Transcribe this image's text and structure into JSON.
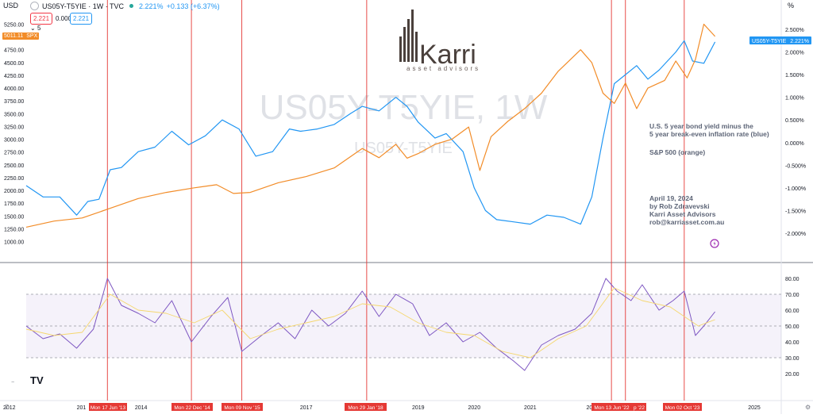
{
  "header": {
    "currency": "USD",
    "symbol_title": "US05Y-T5YIE · 1W · TVC",
    "live_value": "2.221%",
    "live_change": "+0.133 (+6.37%)",
    "bid": "2.221",
    "spread": "0.000",
    "ask": "2.221",
    "percent_axis_label": "%",
    "sub_count": "5",
    "spx_price": "5011.11",
    "spx_tag": "SPX"
  },
  "watermark": {
    "main": "US05Y-T5YIE, 1W",
    "sub": "US05Y-T5YIE"
  },
  "logo": {
    "brand": "Karri",
    "tagline": "asset advisors"
  },
  "annotations": {
    "line1": "U.S. 5 year bond yield minus the",
    "line2": "5 year break-even inflation rate (blue)",
    "line3": "S&P 500 (orange)",
    "date": "April 19, 2024",
    "author": "by Rob Zdravevski",
    "firm": "Karri Asset Advisors",
    "email": "rob@karriasset.com.au"
  },
  "price_badge": {
    "label": "US05Y-T5YIE",
    "value": "2.221%"
  },
  "tradingview_mark": "TV",
  "chart_data": [
    {
      "type": "line",
      "title": "US05Y-T5YIE, 1W",
      "x_axis": {
        "ticks": [
          "2012",
          "2014",
          "2017",
          "2018",
          "2019",
          "2020",
          "2021",
          "2025"
        ],
        "partial_labels": [
          "201",
          "202"
        ]
      },
      "y_left": {
        "label": "SPX",
        "ticks": [
          "5250.00",
          "4750.00",
          "4500.00",
          "4250.00",
          "4000.00",
          "3750.00",
          "3500.00",
          "3250.00",
          "3000.00",
          "2750.00",
          "2500.00",
          "2250.00",
          "2000.00",
          "1750.00",
          "1500.00",
          "1250.00",
          "1000.00"
        ],
        "range": [
          1000,
          5400
        ]
      },
      "y_right": {
        "label": "%",
        "ticks": [
          "2.500%",
          "2.000%",
          "1.500%",
          "1.000%",
          "0.500%",
          "0.000%",
          "-0.500%",
          "-1.000%",
          "-1.500%",
          "-2.000%"
        ],
        "range": [
          -2.0,
          2.5
        ]
      },
      "series": [
        {
          "name": "US05Y-T5YIE",
          "axis": "right",
          "color": "#2196f3",
          "x": [
            2012.0,
            2012.3,
            2012.6,
            2012.9,
            2013.1,
            2013.3,
            2013.5,
            2013.7,
            2014.0,
            2014.3,
            2014.6,
            2014.9,
            2015.2,
            2015.5,
            2015.8,
            2016.1,
            2016.4,
            2016.7,
            2016.9,
            2017.2,
            2017.5,
            2017.8,
            2018.0,
            2018.3,
            2018.6,
            2018.8,
            2019.0,
            2019.3,
            2019.5,
            2019.8,
            2020.0,
            2020.2,
            2020.4,
            2020.7,
            2021.0,
            2021.3,
            2021.6,
            2021.9,
            2022.1,
            2022.3,
            2022.5,
            2022.7,
            2022.9,
            2023.1,
            2023.3,
            2023.6,
            2023.75,
            2023.9,
            2024.1,
            2024.3
          ],
          "values": [
            -0.95,
            -1.2,
            -1.2,
            -1.6,
            -1.3,
            -1.25,
            -0.6,
            -0.55,
            -0.2,
            -0.1,
            0.25,
            -0.05,
            0.15,
            0.5,
            0.3,
            -0.3,
            -0.2,
            0.3,
            0.25,
            0.3,
            0.4,
            0.65,
            0.8,
            0.7,
            1.0,
            0.8,
            0.45,
            0.1,
            0.2,
            -0.2,
            -1.0,
            -1.5,
            -1.7,
            -1.75,
            -1.8,
            -1.6,
            -1.65,
            -1.8,
            -1.2,
            0.1,
            1.3,
            1.5,
            1.7,
            1.4,
            1.6,
            2.0,
            2.25,
            1.8,
            1.75,
            2.221
          ]
        },
        {
          "name": "SPX",
          "axis": "left",
          "color": "#f28c28",
          "x": [
            2012.0,
            2012.5,
            2013.0,
            2013.5,
            2014.0,
            2014.5,
            2015.0,
            2015.4,
            2015.7,
            2016.0,
            2016.5,
            2017.0,
            2017.5,
            2018.0,
            2018.3,
            2018.6,
            2018.8,
            2019.0,
            2019.3,
            2019.6,
            2019.9,
            2020.1,
            2020.3,
            2020.6,
            2020.9,
            2021.2,
            2021.5,
            2021.9,
            2022.1,
            2022.3,
            2022.5,
            2022.7,
            2022.9,
            2023.1,
            2023.4,
            2023.6,
            2023.8,
            2023.95,
            2024.1,
            2024.3
          ],
          "values": [
            1280,
            1400,
            1460,
            1650,
            1840,
            1960,
            2050,
            2110,
            1940,
            1960,
            2150,
            2270,
            2440,
            2820,
            2640,
            2900,
            2630,
            2720,
            2900,
            3000,
            3240,
            2390,
            3050,
            3350,
            3600,
            3900,
            4330,
            4750,
            4500,
            3900,
            3700,
            4100,
            3600,
            4000,
            4150,
            4530,
            4200,
            4560,
            5250,
            5011
          ]
        }
      ],
      "marker_dates": [
        "Mon 17 Jun '13",
        "Mon 22 Dec '14",
        "Mon 09 Nov '15",
        "Mon 29 Jan '18",
        "Mon 13 Jun '22",
        "p '22",
        "Mon 02 Oct '23"
      ]
    },
    {
      "type": "line",
      "title": "",
      "y_right": {
        "ticks": [
          "80.00",
          "70.00",
          "60.00",
          "50.00",
          "40.00",
          "30.00",
          "20.00"
        ],
        "range": [
          16,
          84
        ],
        "band": [
          30,
          70
        ],
        "midline": 50
      },
      "series": [
        {
          "name": "",
          "color": "#7e57c2",
          "x": [
            2012.0,
            2012.3,
            2012.6,
            2012.9,
            2013.2,
            2013.45,
            2013.7,
            2014.0,
            2014.3,
            2014.6,
            2014.95,
            2015.3,
            2015.6,
            2015.85,
            2016.2,
            2016.5,
            2016.8,
            2017.1,
            2017.4,
            2017.7,
            2018.0,
            2018.3,
            2018.6,
            2018.9,
            2019.2,
            2019.5,
            2019.8,
            2020.1,
            2020.4,
            2020.7,
            2020.9,
            2021.2,
            2021.5,
            2021.8,
            2022.1,
            2022.35,
            2022.55,
            2022.8,
            2023.0,
            2023.3,
            2023.55,
            2023.75,
            2023.95,
            2024.1,
            2024.3
          ],
          "values": [
            50,
            42,
            45,
            36,
            48,
            80,
            63,
            58,
            52,
            66,
            40,
            56,
            68,
            34,
            44,
            52,
            42,
            60,
            50,
            58,
            72,
            56,
            70,
            64,
            44,
            52,
            40,
            46,
            36,
            28,
            22,
            38,
            44,
            48,
            58,
            80,
            72,
            66,
            76,
            60,
            66,
            72,
            44,
            50,
            59
          ]
        },
        {
          "name": "",
          "color": "#f5d76e",
          "x": [
            2012.0,
            2012.5,
            2013.0,
            2013.5,
            2014.0,
            2014.5,
            2015.0,
            2015.5,
            2016.0,
            2016.5,
            2017.0,
            2017.5,
            2018.0,
            2018.5,
            2019.0,
            2019.5,
            2020.0,
            2020.5,
            2021.0,
            2021.5,
            2022.0,
            2022.5,
            2023.0,
            2023.5,
            2024.0,
            2024.3
          ],
          "values": [
            48,
            44,
            46,
            70,
            60,
            58,
            52,
            60,
            42,
            48,
            52,
            56,
            64,
            62,
            52,
            46,
            44,
            34,
            30,
            42,
            50,
            74,
            66,
            62,
            50,
            54
          ]
        }
      ]
    }
  ]
}
